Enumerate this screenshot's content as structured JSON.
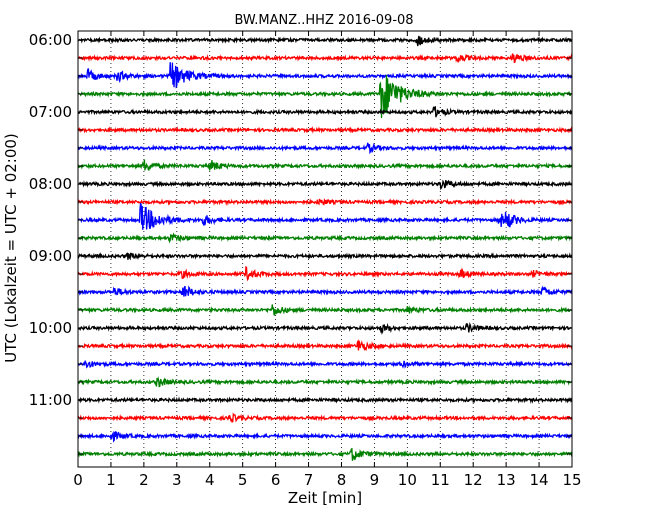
{
  "chart_data": {
    "type": "line",
    "title": "BW.MANZ..HHZ 2016-09-08",
    "xlabel": "Zeit  [min]",
    "ylabel": "UTC (Lokalzeit = UTC + 02:00)",
    "xlim": [
      0,
      15
    ],
    "x_ticks": [
      0,
      1,
      2,
      3,
      4,
      5,
      6,
      7,
      8,
      9,
      10,
      11,
      12,
      13,
      14,
      15
    ],
    "grid": "vertical-dotted",
    "row_minutes": 15,
    "y_tick_labels": [
      "06:00",
      "07:00",
      "08:00",
      "09:00",
      "10:00",
      "11:00"
    ],
    "colors": [
      "#000000",
      "#ff0000",
      "#0000ff",
      "#008000"
    ],
    "traces": [
      {
        "start": "06:00",
        "color": "#000000",
        "events": [
          {
            "t": 10.3,
            "amp": 5
          }
        ]
      },
      {
        "start": "06:15",
        "color": "#ff0000",
        "events": [
          {
            "t": 11.5,
            "amp": 4
          },
          {
            "t": 13.2,
            "amp": 5
          },
          {
            "t": 15.0,
            "amp": 5
          }
        ]
      },
      {
        "start": "06:30",
        "color": "#0000ff",
        "events": [
          {
            "t": 0.3,
            "amp": 6
          },
          {
            "t": 1.2,
            "amp": 5
          },
          {
            "t": 2.8,
            "amp": 14
          }
        ]
      },
      {
        "start": "06:45",
        "color": "#008000",
        "events": [
          {
            "t": 9.2,
            "amp": 28
          }
        ]
      },
      {
        "start": "07:00",
        "color": "#000000",
        "events": [
          {
            "t": 10.8,
            "amp": 5
          }
        ]
      },
      {
        "start": "07:15",
        "color": "#ff0000",
        "events": []
      },
      {
        "start": "07:30",
        "color": "#0000ff",
        "events": [
          {
            "t": 8.8,
            "amp": 4
          }
        ]
      },
      {
        "start": "07:45",
        "color": "#008000",
        "events": [
          {
            "t": 2.0,
            "amp": 6
          },
          {
            "t": 4.0,
            "amp": 6
          }
        ]
      },
      {
        "start": "08:00",
        "color": "#000000",
        "events": [
          {
            "t": 11.0,
            "amp": 5
          }
        ]
      },
      {
        "start": "08:15",
        "color": "#ff0000",
        "events": [
          {
            "t": 7.3,
            "amp": 3
          }
        ]
      },
      {
        "start": "08:30",
        "color": "#0000ff",
        "events": [
          {
            "t": 1.9,
            "amp": 16
          },
          {
            "t": 3.8,
            "amp": 5
          },
          {
            "t": 12.8,
            "amp": 7
          },
          {
            "t": 13.0,
            "amp": 6
          }
        ]
      },
      {
        "start": "08:45",
        "color": "#008000",
        "events": [
          {
            "t": 2.8,
            "amp": 4
          }
        ]
      },
      {
        "start": "09:00",
        "color": "#000000",
        "events": [
          {
            "t": 1.5,
            "amp": 3
          }
        ]
      },
      {
        "start": "09:15",
        "color": "#ff0000",
        "events": [
          {
            "t": 3.1,
            "amp": 4
          },
          {
            "t": 5.1,
            "amp": 6
          },
          {
            "t": 11.6,
            "amp": 4
          },
          {
            "t": 13.8,
            "amp": 3
          }
        ]
      },
      {
        "start": "09:30",
        "color": "#0000ff",
        "events": [
          {
            "t": 1.1,
            "amp": 4
          },
          {
            "t": 3.2,
            "amp": 7
          },
          {
            "t": 14.1,
            "amp": 5
          }
        ]
      },
      {
        "start": "09:45",
        "color": "#008000",
        "events": [
          {
            "t": 5.9,
            "amp": 6
          },
          {
            "t": 10.0,
            "amp": 3
          }
        ]
      },
      {
        "start": "10:00",
        "color": "#000000",
        "events": [
          {
            "t": 9.2,
            "amp": 4
          },
          {
            "t": 11.8,
            "amp": 4
          }
        ]
      },
      {
        "start": "10:15",
        "color": "#ff0000",
        "events": [
          {
            "t": 8.5,
            "amp": 6
          },
          {
            "t": 15.0,
            "amp": 5
          }
        ]
      },
      {
        "start": "10:30",
        "color": "#0000ff",
        "events": [
          {
            "t": 0.2,
            "amp": 4
          },
          {
            "t": 9.8,
            "amp": 3
          }
        ]
      },
      {
        "start": "10:45",
        "color": "#008000",
        "events": [
          {
            "t": 2.4,
            "amp": 5
          }
        ]
      },
      {
        "start": "11:00",
        "color": "#000000",
        "events": []
      },
      {
        "start": "11:15",
        "color": "#ff0000",
        "events": [
          {
            "t": 4.6,
            "amp": 4
          }
        ]
      },
      {
        "start": "11:30",
        "color": "#0000ff",
        "events": [
          {
            "t": 1.0,
            "amp": 5
          }
        ]
      },
      {
        "start": "11:45",
        "color": "#008000",
        "events": [
          {
            "t": 8.3,
            "amp": 7
          }
        ]
      }
    ]
  }
}
